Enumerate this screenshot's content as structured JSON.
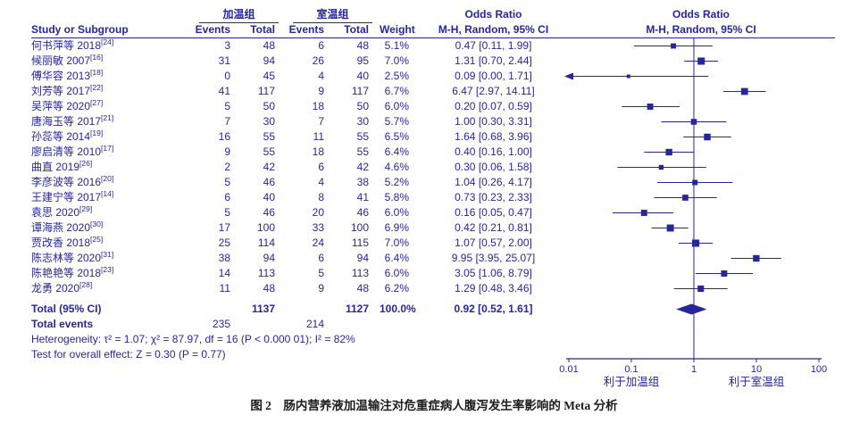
{
  "colors": {
    "ink": "#26269c",
    "background": "#ffffff",
    "caption_ink": "#1c1c1c"
  },
  "header": {
    "group1": "加温组",
    "group2": "室温组",
    "odds_ratio_text_col": "Odds Ratio",
    "odds_ratio_plot_col": "Odds Ratio",
    "study": "Study or Subgroup",
    "events1": "Events",
    "total1": "Total",
    "events2": "Events",
    "total2": "Total",
    "weight": "Weight",
    "mh_text_col": "M-H, Random, 95% CI",
    "mh_plot_col": "M-H, Random, 95% CI"
  },
  "chart_data": {
    "type": "forest",
    "effect_measure": "Odds Ratio, M-H, Random, 95% CI",
    "x_scale": "log10",
    "x_range": [
      0.01,
      100
    ],
    "x_ticks": [
      0.01,
      0.1,
      1,
      10,
      100
    ],
    "x_tick_labels": [
      "0.01",
      "0.1",
      "1",
      "10",
      "100"
    ],
    "no_effect_line": 1,
    "favors_left": "利于加温组",
    "favors_right": "利于室温组",
    "studies": [
      {
        "name": "何书萍等 2018",
        "ref": "[24]",
        "e1": "3",
        "t1": "48",
        "e2": "6",
        "t2": "48",
        "weight": "5.1%",
        "w": 5.1,
        "or": 0.47,
        "lo": 0.11,
        "hi": 1.99,
        "ci": "0.47 [0.11, 1.99]"
      },
      {
        "name": "候丽敏 2007",
        "ref": "[16]",
        "e1": "31",
        "t1": "94",
        "e2": "26",
        "t2": "95",
        "weight": "7.0%",
        "w": 7.0,
        "or": 1.31,
        "lo": 0.7,
        "hi": 2.44,
        "ci": "1.31 [0.70, 2.44]"
      },
      {
        "name": "傅华容 2013",
        "ref": "[18]",
        "e1": "0",
        "t1": "45",
        "e2": "4",
        "t2": "40",
        "weight": "2.5%",
        "w": 2.5,
        "or": 0.09,
        "lo": 0.0,
        "hi": 1.71,
        "ci": "0.09 [0.00, 1.71]"
      },
      {
        "name": "刘芳等 2017",
        "ref": "[22]",
        "e1": "41",
        "t1": "117",
        "e2": "9",
        "t2": "117",
        "weight": "6.7%",
        "w": 6.7,
        "or": 6.47,
        "lo": 2.97,
        "hi": 14.11,
        "ci": "6.47 [2.97, 14.11]"
      },
      {
        "name": "吴萍等 2020",
        "ref": "[27]",
        "e1": "5",
        "t1": "50",
        "e2": "18",
        "t2": "50",
        "weight": "6.0%",
        "w": 6.0,
        "or": 0.2,
        "lo": 0.07,
        "hi": 0.59,
        "ci": "0.20 [0.07, 0.59]"
      },
      {
        "name": "唐海玉等 2017",
        "ref": "[21]",
        "e1": "7",
        "t1": "30",
        "e2": "7",
        "t2": "30",
        "weight": "5.7%",
        "w": 5.7,
        "or": 1.0,
        "lo": 0.3,
        "hi": 3.31,
        "ci": "1.00 [0.30, 3.31]"
      },
      {
        "name": "孙蕊等 2014",
        "ref": "[19]",
        "e1": "16",
        "t1": "55",
        "e2": "11",
        "t2": "55",
        "weight": "6.5%",
        "w": 6.5,
        "or": 1.64,
        "lo": 0.68,
        "hi": 3.96,
        "ci": "1.64 [0.68, 3.96]"
      },
      {
        "name": "廖启清等 2010",
        "ref": "[17]",
        "e1": "9",
        "t1": "55",
        "e2": "18",
        "t2": "55",
        "weight": "6.4%",
        "w": 6.4,
        "or": 0.4,
        "lo": 0.16,
        "hi": 1.0,
        "ci": "0.40 [0.16, 1.00]"
      },
      {
        "name": "曲直 2019",
        "ref": "[26]",
        "e1": "2",
        "t1": "42",
        "e2": "6",
        "t2": "42",
        "weight": "4.6%",
        "w": 4.6,
        "or": 0.3,
        "lo": 0.06,
        "hi": 1.58,
        "ci": "0.30 [0.06, 1.58]"
      },
      {
        "name": "李彦波等 2016",
        "ref": "[20]",
        "e1": "5",
        "t1": "46",
        "e2": "4",
        "t2": "38",
        "weight": "5.2%",
        "w": 5.2,
        "or": 1.04,
        "lo": 0.26,
        "hi": 4.17,
        "ci": "1.04 [0.26, 4.17]"
      },
      {
        "name": "王建宁等 2017",
        "ref": "[14]",
        "e1": "6",
        "t1": "40",
        "e2": "8",
        "t2": "41",
        "weight": "5.8%",
        "w": 5.8,
        "or": 0.73,
        "lo": 0.23,
        "hi": 2.33,
        "ci": "0.73 [0.23, 2.33]"
      },
      {
        "name": "袁思 2020",
        "ref": "[29]",
        "e1": "5",
        "t1": "46",
        "e2": "20",
        "t2": "46",
        "weight": "6.0%",
        "w": 6.0,
        "or": 0.16,
        "lo": 0.05,
        "hi": 0.47,
        "ci": "0.16 [0.05, 0.47]"
      },
      {
        "name": "谭海燕 2020",
        "ref": "[30]",
        "e1": "17",
        "t1": "100",
        "e2": "33",
        "t2": "100",
        "weight": "6.9%",
        "w": 6.9,
        "or": 0.42,
        "lo": 0.21,
        "hi": 0.81,
        "ci": "0.42 [0.21, 0.81]"
      },
      {
        "name": "贾改香 2018",
        "ref": "[25]",
        "e1": "25",
        "t1": "114",
        "e2": "24",
        "t2": "115",
        "weight": "7.0%",
        "w": 7.0,
        "or": 1.07,
        "lo": 0.57,
        "hi": 2.0,
        "ci": "1.07 [0.57, 2.00]"
      },
      {
        "name": "陈志林等 2020",
        "ref": "[31]",
        "e1": "38",
        "t1": "94",
        "e2": "6",
        "t2": "94",
        "weight": "6.4%",
        "w": 6.4,
        "or": 9.95,
        "lo": 3.95,
        "hi": 25.07,
        "ci": "9.95 [3.95, 25.07]"
      },
      {
        "name": "陈艳艳等 2018",
        "ref": "[23]",
        "e1": "14",
        "t1": "113",
        "e2": "5",
        "t2": "113",
        "weight": "6.0%",
        "w": 6.0,
        "or": 3.05,
        "lo": 1.06,
        "hi": 8.79,
        "ci": "3.05 [1.06, 8.79]"
      },
      {
        "name": "龙勇 2020",
        "ref": "[28]",
        "e1": "11",
        "t1": "48",
        "e2": "9",
        "t2": "48",
        "weight": "6.2%",
        "w": 6.2,
        "or": 1.29,
        "lo": 0.48,
        "hi": 3.46,
        "ci": "1.29 [0.48, 3.46]"
      }
    ],
    "total": {
      "label": "Total (95% CI)",
      "t1": "1137",
      "t2": "1127",
      "weight": "100.0%",
      "or": 0.92,
      "lo": 0.52,
      "hi": 1.61,
      "ci": "0.92 [0.52, 1.61]",
      "events1": "235",
      "events2": "214"
    }
  },
  "footer": {
    "total_events_label": "Total events",
    "heterogeneity": "Heterogeneity: τ² = 1.07; χ² = 87.97, df = 16 (P < 0.000 01); I² = 82%",
    "overall_effect": "Test for overall effect: Z = 0.30 (P = 0.77)"
  },
  "caption": "图 2　肠内营养液加温输注对危重症病人腹泻发生率影响的 Meta 分析"
}
